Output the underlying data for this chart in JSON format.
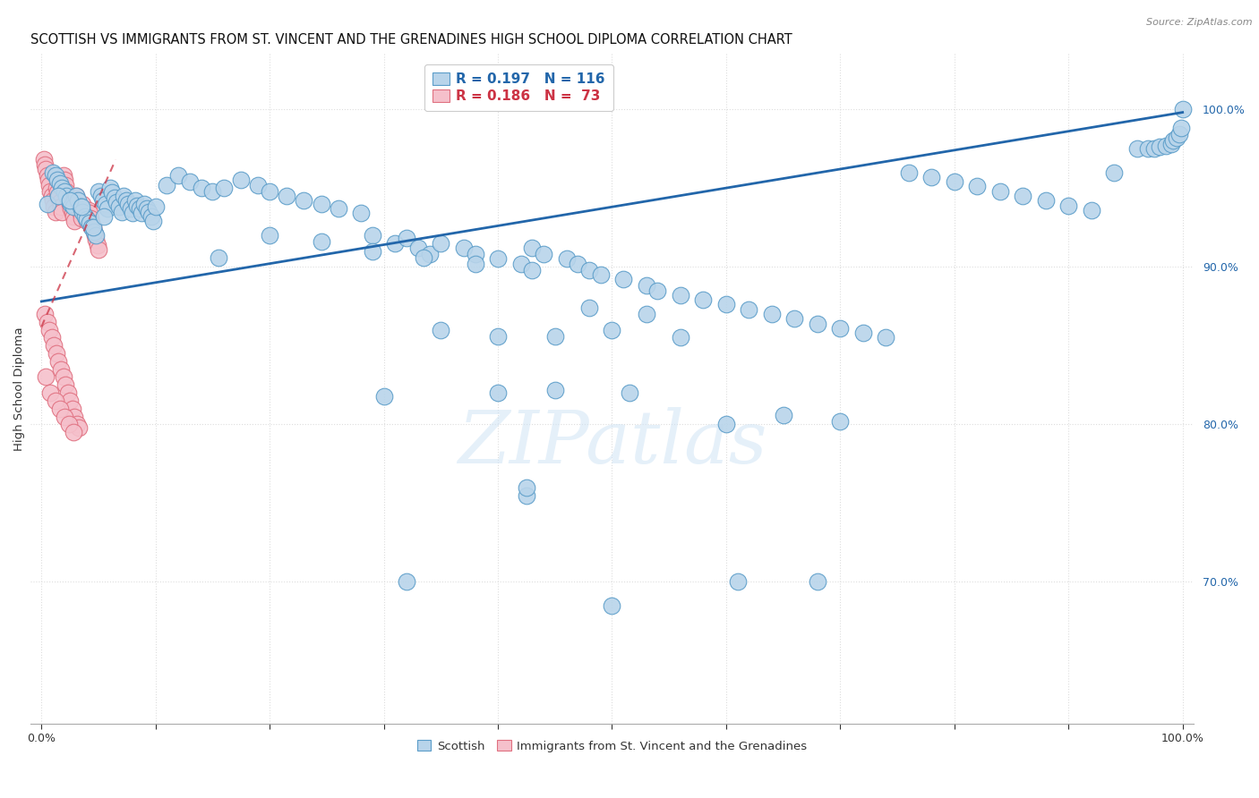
{
  "title": "SCOTTISH VS IMMIGRANTS FROM ST. VINCENT AND THE GRENADINES HIGH SCHOOL DIPLOMA CORRELATION CHART",
  "source": "Source: ZipAtlas.com",
  "ylabel": "High School Diploma",
  "watermark": "ZIPatlas",
  "scottish_color": "#b8d4ea",
  "scottish_edge": "#5b9dc9",
  "immigrants_color": "#f5c0cb",
  "immigrants_edge": "#e07080",
  "trend_color": "#2266aa",
  "pink_trend_color": "#cc3344",
  "background_color": "#ffffff",
  "grid_color": "#dddddd",
  "title_fontsize": 10.5,
  "marker_size": 180,
  "scottish_x": [
    0.01,
    0.012,
    0.014,
    0.016,
    0.018,
    0.02,
    0.022,
    0.024,
    0.026,
    0.028,
    0.03,
    0.032,
    0.034,
    0.036,
    0.038,
    0.04,
    0.042,
    0.044,
    0.046,
    0.048,
    0.05,
    0.052,
    0.054,
    0.056,
    0.058,
    0.06,
    0.062,
    0.064,
    0.066,
    0.068,
    0.07,
    0.072,
    0.074,
    0.076,
    0.078,
    0.08,
    0.082,
    0.084,
    0.086,
    0.088,
    0.09,
    0.092,
    0.094,
    0.096,
    0.098,
    0.1,
    0.11,
    0.12,
    0.13,
    0.14,
    0.15,
    0.16,
    0.175,
    0.19,
    0.2,
    0.215,
    0.23,
    0.245,
    0.26,
    0.28,
    0.29,
    0.31,
    0.32,
    0.33,
    0.34,
    0.35,
    0.37,
    0.38,
    0.4,
    0.42,
    0.43,
    0.44,
    0.46,
    0.47,
    0.48,
    0.49,
    0.51,
    0.53,
    0.54,
    0.56,
    0.58,
    0.6,
    0.62,
    0.64,
    0.66,
    0.68,
    0.7,
    0.72,
    0.74,
    0.76,
    0.78,
    0.8,
    0.82,
    0.84,
    0.86,
    0.88,
    0.9,
    0.92,
    0.94,
    0.96,
    0.97,
    0.975,
    0.98,
    0.985,
    0.99,
    0.992,
    0.995,
    0.997,
    0.999,
    1.0,
    0.005,
    0.015,
    0.025,
    0.035,
    0.045,
    0.055
  ],
  "scottish_y": [
    0.96,
    0.958,
    0.955,
    0.953,
    0.95,
    0.948,
    0.945,
    0.942,
    0.94,
    0.938,
    0.945,
    0.942,
    0.938,
    0.935,
    0.932,
    0.93,
    0.928,
    0.925,
    0.922,
    0.92,
    0.948,
    0.945,
    0.942,
    0.94,
    0.937,
    0.95,
    0.947,
    0.944,
    0.941,
    0.938,
    0.935,
    0.945,
    0.942,
    0.94,
    0.937,
    0.934,
    0.942,
    0.939,
    0.937,
    0.934,
    0.94,
    0.937,
    0.935,
    0.932,
    0.929,
    0.938,
    0.952,
    0.958,
    0.954,
    0.95,
    0.948,
    0.95,
    0.955,
    0.952,
    0.948,
    0.945,
    0.942,
    0.94,
    0.937,
    0.934,
    0.92,
    0.915,
    0.918,
    0.912,
    0.908,
    0.915,
    0.912,
    0.908,
    0.905,
    0.902,
    0.912,
    0.908,
    0.905,
    0.902,
    0.898,
    0.895,
    0.892,
    0.888,
    0.885,
    0.882,
    0.879,
    0.876,
    0.873,
    0.87,
    0.867,
    0.864,
    0.861,
    0.858,
    0.855,
    0.96,
    0.957,
    0.954,
    0.951,
    0.948,
    0.945,
    0.942,
    0.939,
    0.936,
    0.96,
    0.975,
    0.975,
    0.975,
    0.976,
    0.977,
    0.978,
    0.98,
    0.982,
    0.984,
    0.988,
    1.0,
    0.94,
    0.945,
    0.942,
    0.938,
    0.925,
    0.932
  ],
  "scottish_x2": [
    0.155,
    0.2,
    0.245,
    0.29,
    0.335,
    0.38,
    0.43,
    0.48,
    0.53,
    0.35,
    0.4,
    0.45,
    0.5,
    0.56,
    0.3,
    0.4,
    0.45,
    0.515,
    0.6,
    0.65,
    0.7
  ],
  "scottish_y2": [
    0.906,
    0.92,
    0.916,
    0.91,
    0.906,
    0.902,
    0.898,
    0.874,
    0.87,
    0.86,
    0.856,
    0.856,
    0.86,
    0.855,
    0.818,
    0.82,
    0.822,
    0.82,
    0.8,
    0.806,
    0.802
  ],
  "scottish_x3": [
    0.32,
    0.425,
    0.425,
    0.5,
    0.61,
    0.68
  ],
  "scottish_y3": [
    0.7,
    0.755,
    0.76,
    0.685,
    0.7,
    0.7
  ],
  "immigrants_x": [
    0.002,
    0.003,
    0.004,
    0.005,
    0.006,
    0.007,
    0.008,
    0.009,
    0.01,
    0.011,
    0.012,
    0.013,
    0.014,
    0.015,
    0.016,
    0.017,
    0.018,
    0.019,
    0.02,
    0.021,
    0.022,
    0.023,
    0.024,
    0.025,
    0.026,
    0.027,
    0.028,
    0.029,
    0.03,
    0.031,
    0.032,
    0.033,
    0.034,
    0.035,
    0.036,
    0.037,
    0.038,
    0.039,
    0.04,
    0.041,
    0.042,
    0.043,
    0.044,
    0.045,
    0.046,
    0.047,
    0.048,
    0.049,
    0.05,
    0.003,
    0.005,
    0.007,
    0.009,
    0.011,
    0.013,
    0.015,
    0.017,
    0.019,
    0.021,
    0.023,
    0.025,
    0.027,
    0.029,
    0.031,
    0.033,
    0.004,
    0.008,
    0.012,
    0.016,
    0.02,
    0.024,
    0.028
  ],
  "immigrants_y": [
    0.968,
    0.965,
    0.962,
    0.958,
    0.955,
    0.952,
    0.948,
    0.945,
    0.942,
    0.938,
    0.935,
    0.95,
    0.947,
    0.944,
    0.941,
    0.938,
    0.935,
    0.958,
    0.955,
    0.952,
    0.948,
    0.945,
    0.942,
    0.94,
    0.937,
    0.934,
    0.932,
    0.929,
    0.945,
    0.942,
    0.94,
    0.937,
    0.934,
    0.931,
    0.94,
    0.937,
    0.935,
    0.932,
    0.929,
    0.936,
    0.934,
    0.931,
    0.928,
    0.925,
    0.922,
    0.92,
    0.917,
    0.914,
    0.911,
    0.87,
    0.865,
    0.86,
    0.855,
    0.85,
    0.845,
    0.84,
    0.835,
    0.83,
    0.825,
    0.82,
    0.815,
    0.81,
    0.805,
    0.8,
    0.798,
    0.83,
    0.82,
    0.815,
    0.81,
    0.805,
    0.8,
    0.795
  ],
  "xlim": [
    -0.01,
    1.01
  ],
  "ylim": [
    0.61,
    1.035
  ],
  "trend_x": [
    0.0,
    1.0
  ],
  "trend_y": [
    0.878,
    0.998
  ],
  "pink_trend_x": [
    0.0,
    0.065
  ],
  "pink_trend_y": [
    0.862,
    0.968
  ]
}
